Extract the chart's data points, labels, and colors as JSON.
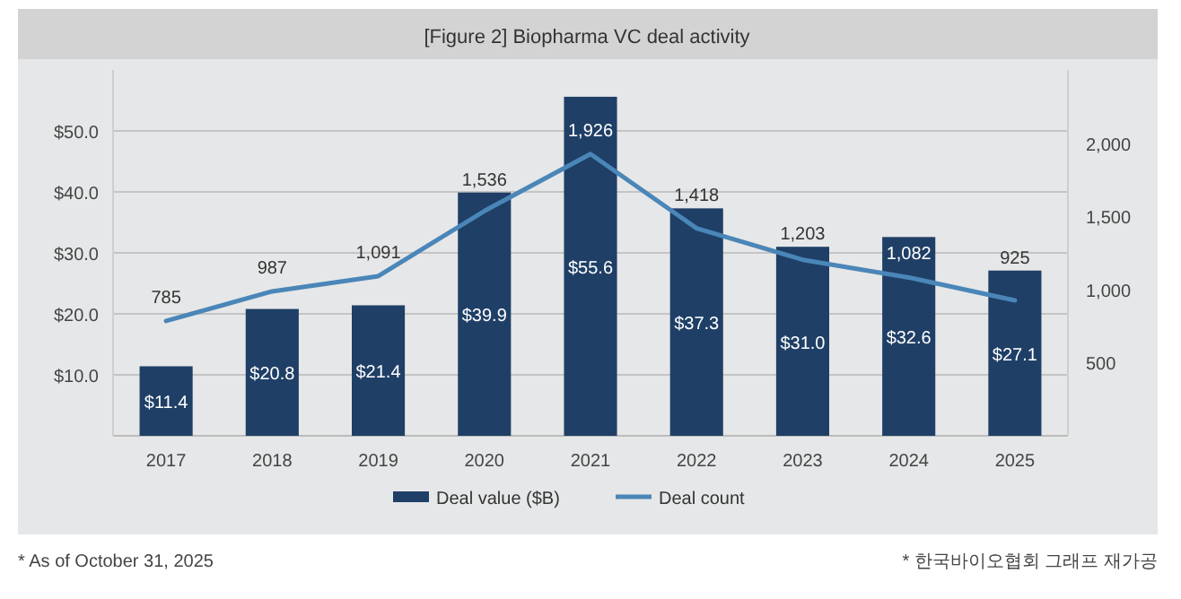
{
  "chart_data": {
    "type": "bar",
    "title": "[Figure 2] Biopharma VC deal activity",
    "categories": [
      "2017",
      "2018",
      "2019",
      "2020",
      "2021",
      "2022",
      "2023",
      "2024",
      "2025"
    ],
    "series": [
      {
        "name": "Deal value ($B)",
        "type": "bar",
        "color": "#1f3f66",
        "values": [
          11.4,
          20.8,
          21.4,
          39.9,
          55.6,
          37.3,
          31.0,
          32.6,
          27.1
        ],
        "value_labels": [
          "$11.4",
          "$20.8",
          "$21.4",
          "$39.9",
          "$55.6",
          "$37.3",
          "$31.0",
          "$32.6",
          "$27.1"
        ]
      },
      {
        "name": "Deal count",
        "type": "line",
        "axis": "y2",
        "color": "#4a86b8",
        "values": [
          785,
          987,
          1091,
          1536,
          1926,
          1418,
          1203,
          1082,
          925
        ],
        "value_labels": [
          "785",
          "987",
          "1,091",
          "1,536",
          "1,926",
          "1,418",
          "1,203",
          "1,082",
          "925"
        ]
      }
    ],
    "ylim": [
      0,
      60
    ],
    "y2lim": [
      0,
      2500
    ],
    "yticks": [
      {
        "value": 0,
        "label": null
      },
      {
        "value": 10,
        "label": "$10.0"
      },
      {
        "value": 20,
        "label": "$20.0"
      },
      {
        "value": 30,
        "label": "$30.0"
      },
      {
        "value": 40,
        "label": "$40.0"
      },
      {
        "value": 50,
        "label": "$50.0"
      }
    ],
    "y2ticks": [
      {
        "value": 500,
        "label": "500"
      },
      {
        "value": 1000,
        "label": "1,000"
      },
      {
        "value": 1500,
        "label": "1,500"
      },
      {
        "value": 2000,
        "label": "2,000"
      }
    ],
    "grid": "y",
    "legend": "bottom",
    "marker": "none",
    "line_style": "solid",
    "annotations": [
      "* As of October 31, 2025",
      "* 한국바이오협회 그래프 재가공"
    ]
  }
}
